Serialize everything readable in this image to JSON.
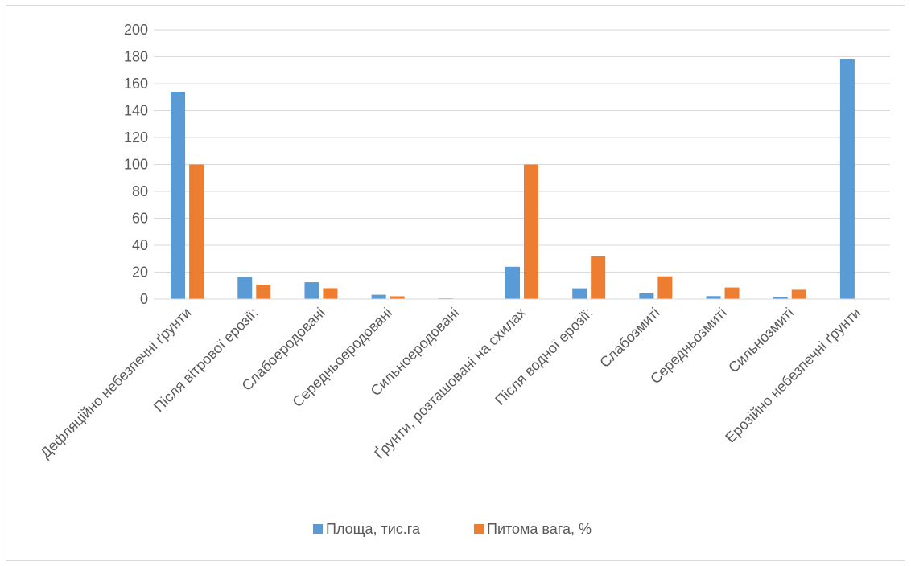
{
  "chart_data": {
    "type": "bar",
    "categories": [
      "Дефляційно небезпечні ґрунти",
      "Після вітрової ерозії:",
      "Слабоеродовані",
      "Середньоеродовані",
      "Сильноеродовані",
      "Ґрунти, розташовані на схилах",
      "Після водної ерозії:",
      "Слабозмиті",
      "Середньозмиті",
      "Сильнозмиті",
      "Ерозійно небезпечні ґрунти"
    ],
    "series": [
      {
        "name": "Площа, тис.га",
        "color": "#5b9bd5",
        "values": [
          154,
          16.5,
          12.5,
          3.2,
          0.5,
          24,
          8,
          4.2,
          2.2,
          1.7,
          178
        ]
      },
      {
        "name": "Питома вага, %",
        "color": "#ed7d31",
        "values": [
          100,
          10.7,
          8.1,
          2.1,
          0.3,
          100,
          31.7,
          16.9,
          8.6,
          6.9,
          0
        ]
      }
    ],
    "yticks": [
      0,
      20,
      40,
      60,
      80,
      100,
      120,
      140,
      160,
      180,
      200
    ],
    "ylim": [
      0,
      200
    ],
    "grid": true,
    "legend_position": "bottom",
    "title": "",
    "xlabel": "",
    "ylabel": ""
  }
}
